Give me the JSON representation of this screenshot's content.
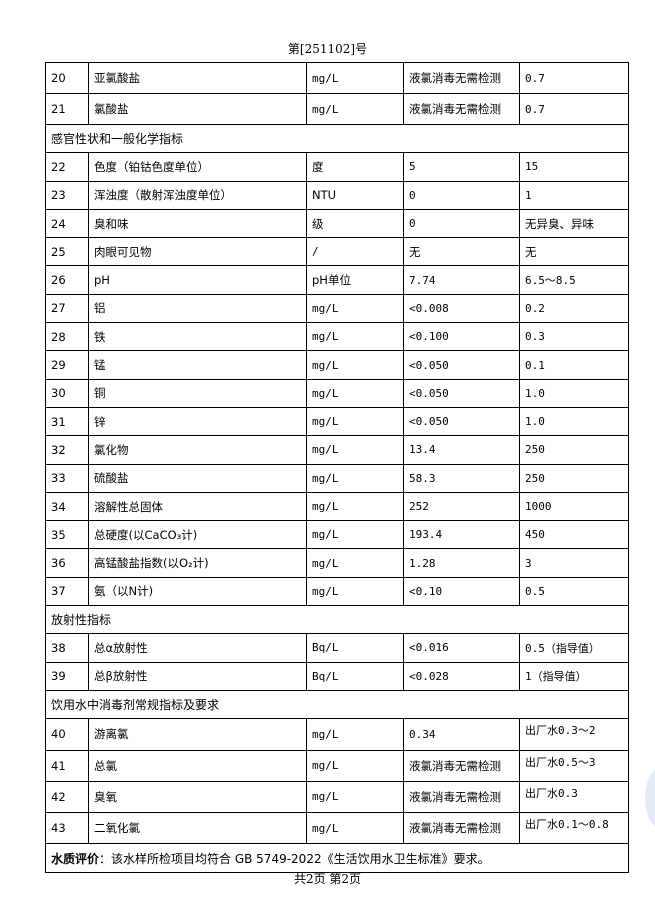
{
  "header": {
    "report_no": "第[251102]号"
  },
  "rows_top": [
    {
      "no": "20",
      "name": "亚氯酸盐",
      "unit": "mg/L",
      "result": "液氯消毒无需检测",
      "limit": "0.7"
    },
    {
      "no": "21",
      "name": "氯酸盐",
      "unit": "mg/L",
      "result": "液氯消毒无需检测",
      "limit": "0.7"
    }
  ],
  "section1": "感官性状和一般化学指标",
  "rows_mid": [
    {
      "no": "22",
      "name": "色度（铂钴色度单位）",
      "unit": "度",
      "result": "5",
      "limit": "15"
    },
    {
      "no": "23",
      "name": "浑浊度（散射浑浊度单位）",
      "unit": "NTU",
      "result": "0",
      "limit": "1"
    },
    {
      "no": "24",
      "name": "臭和味",
      "unit": "级",
      "result": "0",
      "limit": "无异臭、异味"
    },
    {
      "no": "25",
      "name": "肉眼可见物",
      "unit": "/",
      "result": "无",
      "limit": "无"
    },
    {
      "no": "26",
      "name": "pH",
      "unit": "pH单位",
      "result": "7.74",
      "limit": "6.5～8.5"
    },
    {
      "no": "27",
      "name": "铝",
      "unit": "mg/L",
      "result": "<0.008",
      "limit": "0.2"
    },
    {
      "no": "28",
      "name": "铁",
      "unit": "mg/L",
      "result": "<0.100",
      "limit": "0.3"
    },
    {
      "no": "29",
      "name": "锰",
      "unit": "mg/L",
      "result": "<0.050",
      "limit": "0.1"
    },
    {
      "no": "30",
      "name": "铜",
      "unit": "mg/L",
      "result": "<0.050",
      "limit": "1.0"
    },
    {
      "no": "31",
      "name": "锌",
      "unit": "mg/L",
      "result": "<0.050",
      "limit": "1.0"
    },
    {
      "no": "32",
      "name": "氯化物",
      "unit": "mg/L",
      "result": "13.4",
      "limit": "250"
    },
    {
      "no": "33",
      "name": "硫酸盐",
      "unit": "mg/L",
      "result": "58.3",
      "limit": "250"
    },
    {
      "no": "34",
      "name": "溶解性总固体",
      "unit": "mg/L",
      "result": "252",
      "limit": "1000"
    },
    {
      "no": "35",
      "name": "总硬度(以CaCO₃计)",
      "unit": "mg/L",
      "result": "193.4",
      "limit": "450"
    },
    {
      "no": "36",
      "name": "高锰酸盐指数(以O₂计)",
      "unit": "mg/L",
      "result": "1.28",
      "limit": "3"
    },
    {
      "no": "37",
      "name": "氨（以N计)",
      "unit": "mg/L",
      "result": "<0.10",
      "limit": "0.5"
    }
  ],
  "section2": "放射性指标",
  "rows_rad": [
    {
      "no": "38",
      "name": "总α放射性",
      "unit": "Bq/L",
      "result": "<0.016",
      "limit": "0.5（指导值）"
    },
    {
      "no": "39",
      "name": "总β放射性",
      "unit": "Bq/L",
      "result": "<0.028",
      "limit": "1（指导值）"
    }
  ],
  "section3": "饮用水中消毒剂常规指标及要求",
  "rows_dis": [
    {
      "no": "40",
      "name": "游离氯",
      "unit": "mg/L",
      "result": "0.34",
      "limit": "出厂水0.3～2"
    },
    {
      "no": "41",
      "name": "总氯",
      "unit": "mg/L",
      "result": "液氯消毒无需检测",
      "limit": "出厂水0.5～3"
    },
    {
      "no": "42",
      "name": "臭氧",
      "unit": "mg/L",
      "result": "液氯消毒无需检测",
      "limit": "出厂水0.3"
    },
    {
      "no": "43",
      "name": "二氧化氯",
      "unit": "mg/L",
      "result": "液氯消毒无需检测",
      "limit": "出厂水0.1～0.8"
    }
  ],
  "evaluation": {
    "label": "水质评价",
    "text": "：该水样所检项目均符合 GB  5749-2022《生活饮用水卫生标准》要求。"
  },
  "footer": "共2页 第2页"
}
